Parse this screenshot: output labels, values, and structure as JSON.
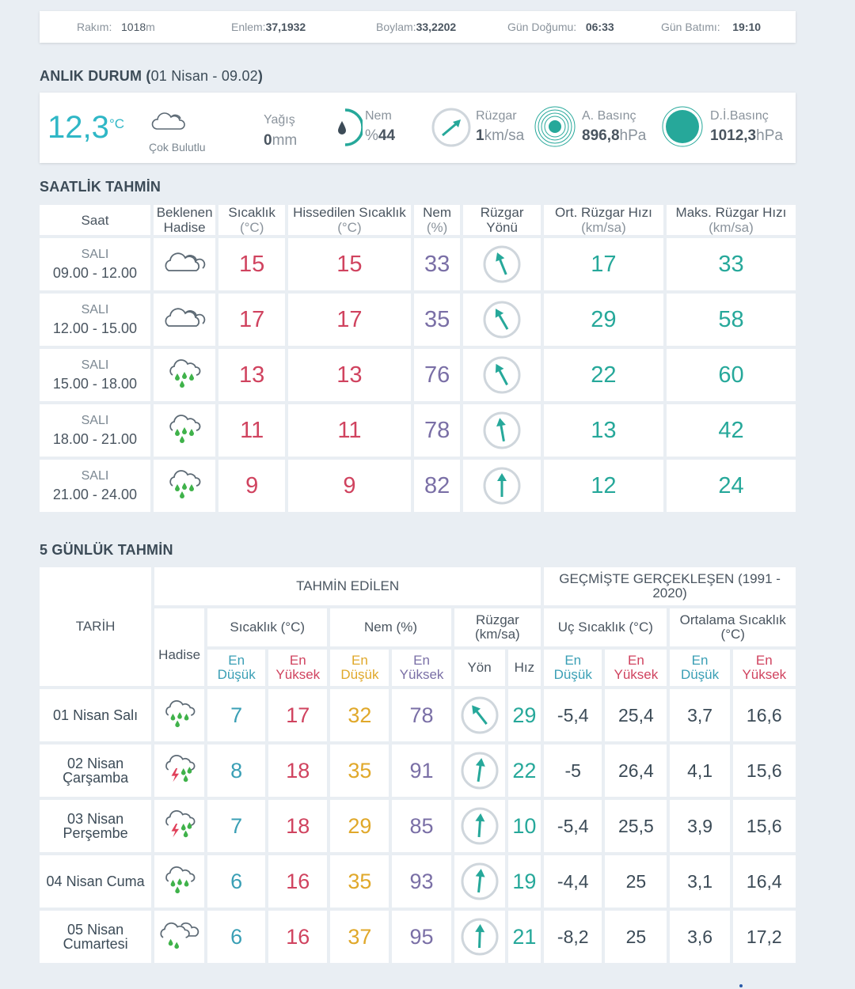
{
  "info": {
    "altitude_label": "Rakım:",
    "altitude_value": "1018",
    "altitude_unit": "m",
    "lat_label": "Enlem:",
    "lat_value": "37,1932",
    "lon_label": "Boylam:",
    "lon_value": "33,2202",
    "sunrise_label": "Gün Doğumu:",
    "sunrise_value": "06:33",
    "sunset_label": "Gün Batımı:",
    "sunset_value": "19:10"
  },
  "current": {
    "title": "ANLIK DURUM (",
    "title_date": "01 Nisan - 09.02",
    "title_close": ")",
    "temp": "12,3",
    "temp_unit": "°C",
    "condition": "Çok Bulutlu",
    "rain_label": "Yağış",
    "rain_value": "0",
    "rain_unit": "mm",
    "humidity_label": "Nem",
    "humidity_prefix": "%",
    "humidity_value": "44",
    "wind_label": "Rüzgar",
    "wind_value": "1",
    "wind_unit": "km/sa",
    "pressure_label": "A. Basınç",
    "pressure_value": "896,8",
    "pressure_unit": "hPa",
    "sea_pressure_label": "D.İ.Basınç",
    "sea_pressure_value": "1012,3",
    "sea_pressure_unit": "hPa",
    "colors": {
      "accent": "#2fb7c6",
      "teal": "#26a89a"
    },
    "icons": [
      "cloud-icon",
      "droplet-icon",
      "wind-direction-icon",
      "pressure-icon"
    ]
  },
  "hourly": {
    "title": "SAATLİK TAHMİN",
    "headers": {
      "time": "Saat",
      "event1": "Beklenen",
      "event2": "Hadise",
      "temp1": "Sıcaklık",
      "temp2": "(°C)",
      "feels1": "Hissedilen Sıcaklık",
      "feels2": "(°C)",
      "hum1": "Nem",
      "hum2": "(%)",
      "wdir1": "Rüzgar",
      "wdir2": "Yönü",
      "avg1": "Ort. Rüzgar Hızı",
      "avg2": "(km/sa)",
      "max1": "Maks. Rüzgar Hızı",
      "max2": "(km/sa)"
    },
    "rows": [
      {
        "day": "SALI",
        "range": "09.00 - 12.00",
        "icon": "cloud-icon",
        "temp": "15",
        "feels": "15",
        "hum": "33",
        "avg": "17",
        "max": "33"
      },
      {
        "day": "SALI",
        "range": "12.00 - 15.00",
        "icon": "cloud-icon",
        "temp": "17",
        "feels": "17",
        "hum": "35",
        "avg": "29",
        "max": "58"
      },
      {
        "day": "SALI",
        "range": "15.00 - 18.00",
        "icon": "rain-icon",
        "temp": "13",
        "feels": "13",
        "hum": "76",
        "avg": "22",
        "max": "60"
      },
      {
        "day": "SALI",
        "range": "18.00 - 21.00",
        "icon": "rain-icon",
        "temp": "11",
        "feels": "11",
        "hum": "78",
        "avg": "13",
        "max": "42"
      },
      {
        "day": "SALI",
        "range": "21.00 - 24.00",
        "icon": "rain-icon",
        "temp": "9",
        "feels": "9",
        "hum": "82",
        "avg": "12",
        "max": "24"
      }
    ]
  },
  "daily": {
    "title": "5 GÜNLÜK TAHMİN",
    "headers": {
      "date": "TARİH",
      "forecast": "TAHMİN EDİLEN",
      "history": "GEÇMİŞTE GERÇEKLEŞEN (1991 - 2020)",
      "event": "Hadise",
      "temp": "Sıcaklık (°C)",
      "hum": "Nem (%)",
      "wind1": "Rüzgar",
      "wind2": "(km/sa)",
      "extreme": "Uç Sıcaklık (°C)",
      "avg1": "Ortalama Sıcaklık",
      "avg2": "(°C)",
      "lo1": "En",
      "lo2": "Düşük",
      "hi1": "En",
      "hi2": "Yüksek",
      "dir": "Yön",
      "speed": "Hız"
    },
    "rows": [
      {
        "date1": "01 Nisan Salı",
        "date2": "",
        "icon": "rain-icon",
        "tlo": "7",
        "thi": "17",
        "hlo": "32",
        "hhi": "78",
        "spd": "29",
        "elo": "-5,4",
        "ehi": "25,4",
        "alo": "3,7",
        "ahi": "16,6"
      },
      {
        "date1": "02 Nisan",
        "date2": "Çarşamba",
        "icon": "thunderstorm-icon",
        "tlo": "8",
        "thi": "18",
        "hlo": "35",
        "hhi": "91",
        "spd": "22",
        "elo": "-5",
        "ehi": "26,4",
        "alo": "4,1",
        "ahi": "15,6"
      },
      {
        "date1": "03 Nisan",
        "date2": "Perşembe",
        "icon": "thunderstorm-icon",
        "tlo": "7",
        "thi": "18",
        "hlo": "29",
        "hhi": "85",
        "spd": "10",
        "elo": "-5,4",
        "ehi": "25,5",
        "alo": "3,9",
        "ahi": "15,6"
      },
      {
        "date1": "04 Nisan Cuma",
        "date2": "",
        "icon": "rain-icon",
        "tlo": "6",
        "thi": "16",
        "hlo": "35",
        "hhi": "93",
        "spd": "19",
        "elo": "-4,4",
        "ehi": "25",
        "alo": "3,1",
        "ahi": "16,4"
      },
      {
        "date1": "05 Nisan",
        "date2": "Cumartesi",
        "icon": "partly-rain-icon",
        "tlo": "6",
        "thi": "16",
        "hlo": "37",
        "hhi": "95",
        "spd": "21",
        "elo": "-8,2",
        "ehi": "25",
        "alo": "3,6",
        "ahi": "17,2"
      }
    ]
  }
}
